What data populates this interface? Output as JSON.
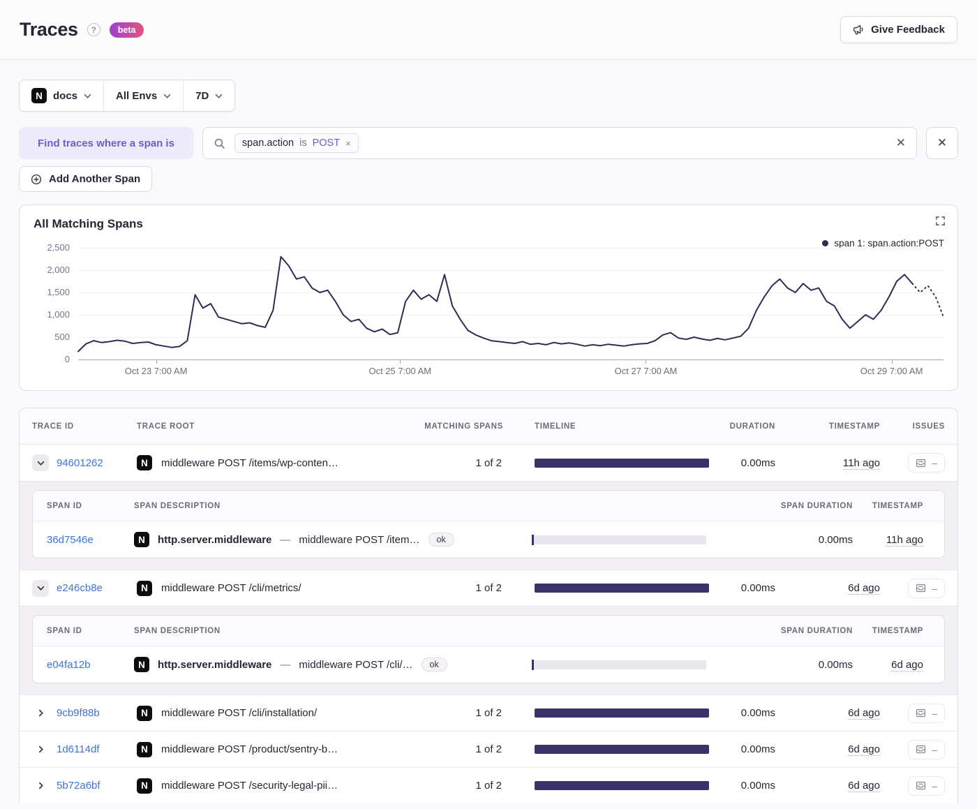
{
  "page": {
    "title": "Traces",
    "help_glyph": "?",
    "beta_badge": "beta",
    "feedback_button": "Give Feedback"
  },
  "filters": {
    "project": {
      "icon": "nextjs-icon",
      "icon_glyph": "N",
      "label": "docs"
    },
    "environment": {
      "label": "All Envs"
    },
    "period": {
      "label": "7D"
    }
  },
  "span_query": {
    "label": "Find traces where a span is",
    "token": {
      "key": "span.action",
      "operator": "is",
      "value": "POST",
      "remove_glyph": "×"
    },
    "clear_glyph": "✕",
    "remove_row_glyph": "✕",
    "add_button": "Add Another Span"
  },
  "chart": {
    "title": "All Matching Spans",
    "legend": "span 1: span.action:POST"
  },
  "chart_data": {
    "type": "line",
    "title": "All Matching Spans",
    "series": [
      {
        "name": "span 1: span.action:POST",
        "values": [
          180,
          350,
          420,
          380,
          400,
          430,
          410,
          360,
          380,
          390,
          330,
          300,
          270,
          290,
          420,
          1450,
          1150,
          1250,
          950,
          900,
          850,
          800,
          820,
          760,
          720,
          1100,
          2300,
          2100,
          1800,
          1850,
          1600,
          1500,
          1550,
          1300,
          1000,
          850,
          900,
          700,
          620,
          680,
          560,
          600,
          1300,
          1550,
          1350,
          1450,
          1300,
          1900,
          1200,
          900,
          650,
          550,
          480,
          420,
          400,
          380,
          360,
          400,
          340,
          360,
          330,
          380,
          350,
          370,
          340,
          300,
          330,
          310,
          340,
          320,
          300,
          330,
          350,
          360,
          420,
          550,
          600,
          480,
          450,
          500,
          460,
          430,
          470,
          440,
          480,
          520,
          700,
          1100,
          1400,
          1650,
          1800,
          1600,
          1500,
          1700,
          1550,
          1600,
          1300,
          1200,
          900,
          700,
          850,
          1000,
          900,
          1100,
          1400,
          1750,
          1900,
          1700,
          1500,
          1650,
          1400,
          950
        ]
      }
    ],
    "dashed_tail_points": 4,
    "ylim": [
      0,
      2500
    ],
    "y_ticks": [
      {
        "value": 0,
        "label": "0"
      },
      {
        "value": 500,
        "label": "500"
      },
      {
        "value": 1000,
        "label": "1,000"
      },
      {
        "value": 1500,
        "label": "1,500"
      },
      {
        "value": 2000,
        "label": "2,000"
      },
      {
        "value": 2500,
        "label": "2,500"
      }
    ],
    "x_ticks": [
      {
        "label": "Oct 23 7:00 AM",
        "f": 0.09
      },
      {
        "label": "Oct 25 7:00 AM",
        "f": 0.372
      },
      {
        "label": "Oct 27 7:00 AM",
        "f": 0.656
      },
      {
        "label": "Oct 29 7:00 AM",
        "f": 0.94
      }
    ],
    "grid": "horizontal",
    "legend_position": "top-right",
    "line_color": "#2F2B55"
  },
  "table": {
    "columns": [
      "TRACE ID",
      "TRACE ROOT",
      "MATCHING SPANS",
      "TIMELINE",
      "DURATION",
      "TIMESTAMP",
      "ISSUES"
    ],
    "span_columns": [
      "SPAN ID",
      "SPAN DESCRIPTION",
      "SPAN DURATION",
      "TIMESTAMP"
    ],
    "span_separator": "—",
    "issues_placeholder": "–",
    "rows": [
      {
        "id": "94601262",
        "expanded": true,
        "root": "middleware POST /items/wp-conten…",
        "matching": "1 of 2",
        "duration": "0.00ms",
        "timestamp": "11h ago",
        "spans": [
          {
            "id": "36d7546e",
            "op": "http.server.middleware",
            "desc": "middleware POST /item…",
            "status": "ok",
            "duration": "0.00ms",
            "timestamp": "11h ago"
          }
        ]
      },
      {
        "id": "e246cb8e",
        "expanded": true,
        "root": "middleware POST /cli/metrics/",
        "matching": "1 of 2",
        "duration": "0.00ms",
        "timestamp": "6d ago",
        "spans": [
          {
            "id": "e04fa12b",
            "op": "http.server.middleware",
            "desc": "middleware POST /cli/…",
            "status": "ok",
            "duration": "0.00ms",
            "timestamp": "6d ago"
          }
        ]
      },
      {
        "id": "9cb9f88b",
        "expanded": false,
        "root": "middleware POST /cli/installation/",
        "matching": "1 of 2",
        "duration": "0.00ms",
        "timestamp": "6d ago",
        "spans": []
      },
      {
        "id": "1d6114df",
        "expanded": false,
        "root": "middleware POST /product/sentry-b…",
        "matching": "1 of 2",
        "duration": "0.00ms",
        "timestamp": "6d ago",
        "spans": []
      },
      {
        "id": "5b72a6bf",
        "expanded": false,
        "root": "middleware POST /security-legal-pii…",
        "matching": "1 of 2",
        "duration": "0.00ms",
        "timestamp": "6d ago",
        "spans": []
      }
    ]
  },
  "colors": {
    "accent": "#6C5FC7",
    "link": "#3D74DB",
    "timeline_bar": "#3A3268",
    "chart_line": "#2F2B55",
    "badge_gradient_from": "#9D3FD1",
    "badge_gradient_to": "#E1567C"
  }
}
